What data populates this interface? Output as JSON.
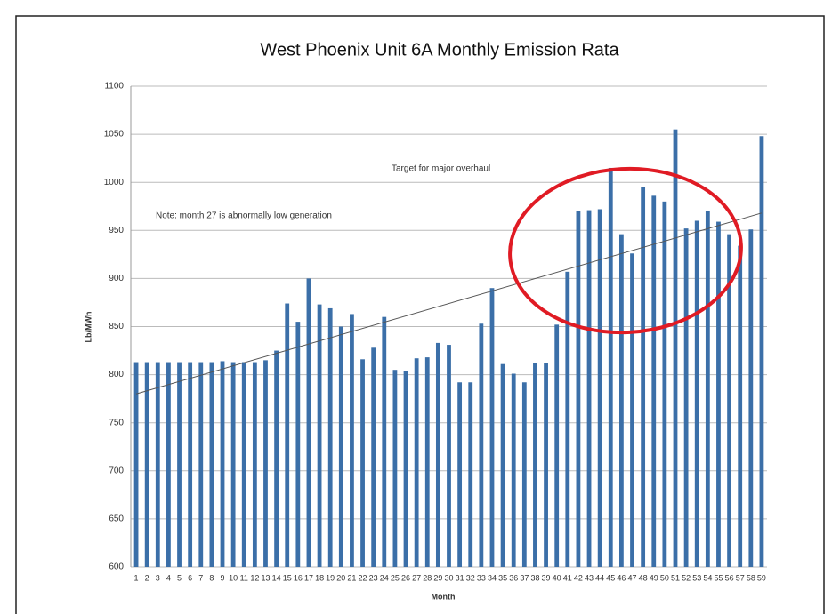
{
  "chart_data": {
    "type": "bar",
    "title": "West Phoenix Unit 6A Monthly Emission Rata",
    "x_label": "Month",
    "y_label": "Lb/MWh",
    "annotations": [
      "Target for major overhaul",
      "Note: month 27 is abnormally low generation"
    ],
    "categories": [
      1,
      2,
      3,
      4,
      5,
      6,
      7,
      8,
      9,
      10,
      11,
      12,
      13,
      14,
      15,
      16,
      17,
      18,
      19,
      20,
      21,
      22,
      23,
      24,
      25,
      26,
      27,
      28,
      29,
      30,
      31,
      32,
      33,
      34,
      35,
      36,
      37,
      38,
      39,
      40,
      41,
      42,
      43,
      44,
      45,
      46,
      47,
      48,
      49,
      50,
      51,
      52,
      53,
      54,
      55,
      56,
      57,
      58,
      59
    ],
    "values": [
      813,
      813,
      813,
      813,
      813,
      813,
      813,
      813,
      814,
      813,
      813,
      813,
      815,
      825,
      874,
      855,
      900,
      873,
      869,
      850,
      863,
      816,
      828,
      860,
      805,
      804,
      817,
      818,
      833,
      831,
      792,
      792,
      853,
      890,
      811,
      801,
      792,
      812,
      812,
      852,
      907,
      970,
      971,
      972,
      1015,
      946,
      926,
      995,
      986,
      980,
      1055,
      952,
      960,
      970,
      959,
      946,
      934,
      951,
      1048
    ],
    "color": "#3b6fa8",
    "trendline": [
      780,
      968
    ],
    "ylim": [
      600,
      1100
    ],
    "yticks": [
      600,
      650,
      700,
      750,
      800,
      850,
      900,
      950,
      1000,
      1050,
      1100
    ],
    "grid": true
  }
}
